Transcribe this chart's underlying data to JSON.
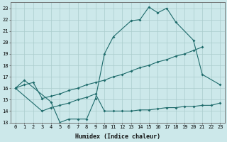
{
  "xlabel": "Humidex (Indice chaleur)",
  "xlim": [
    -0.5,
    23.5
  ],
  "ylim": [
    13,
    23.5
  ],
  "yticks": [
    13,
    14,
    15,
    16,
    17,
    18,
    19,
    20,
    21,
    22,
    23
  ],
  "xticks": [
    0,
    1,
    2,
    3,
    4,
    5,
    6,
    7,
    8,
    9,
    10,
    11,
    12,
    13,
    14,
    15,
    16,
    17,
    18,
    19,
    20,
    21,
    22,
    23
  ],
  "bg_color": "#cce8ea",
  "grid_color": "#aacccc",
  "line_color": "#1e6b6b",
  "line1_x": [
    0,
    1,
    4,
    5,
    6,
    7,
    8,
    9,
    10,
    11,
    13,
    14,
    15,
    16,
    17,
    18,
    20,
    21,
    23
  ],
  "line1_y": [
    16.0,
    16.7,
    14.8,
    13.0,
    13.3,
    13.3,
    13.3,
    15.1,
    19.0,
    20.5,
    21.9,
    22.0,
    23.1,
    22.6,
    23.0,
    21.8,
    20.2,
    17.2,
    16.3
  ],
  "line2_x": [
    0,
    1,
    2,
    3,
    4,
    5,
    6,
    7,
    8,
    9,
    10,
    11,
    12,
    13,
    14,
    15,
    16,
    17,
    18,
    19,
    20,
    21
  ],
  "line2_y": [
    16.0,
    16.3,
    16.5,
    15.1,
    15.3,
    15.5,
    15.8,
    16.0,
    16.3,
    16.5,
    16.7,
    17.0,
    17.2,
    17.5,
    17.8,
    18.0,
    18.3,
    18.5,
    18.8,
    19.0,
    19.3,
    19.6
  ],
  "line3_x": [
    0,
    3,
    4,
    5,
    6,
    7,
    8,
    9,
    10,
    11,
    12,
    13,
    14,
    15,
    16,
    17,
    18,
    19,
    20,
    21,
    22,
    23
  ],
  "line3_y": [
    16.0,
    14.0,
    14.3,
    14.5,
    14.7,
    15.0,
    15.2,
    15.5,
    14.0,
    14.0,
    14.0,
    14.0,
    14.1,
    14.1,
    14.2,
    14.3,
    14.3,
    14.4,
    14.4,
    14.5,
    14.5,
    14.7
  ],
  "tick_fontsize": 5.0,
  "xlabel_fontsize": 6.0
}
